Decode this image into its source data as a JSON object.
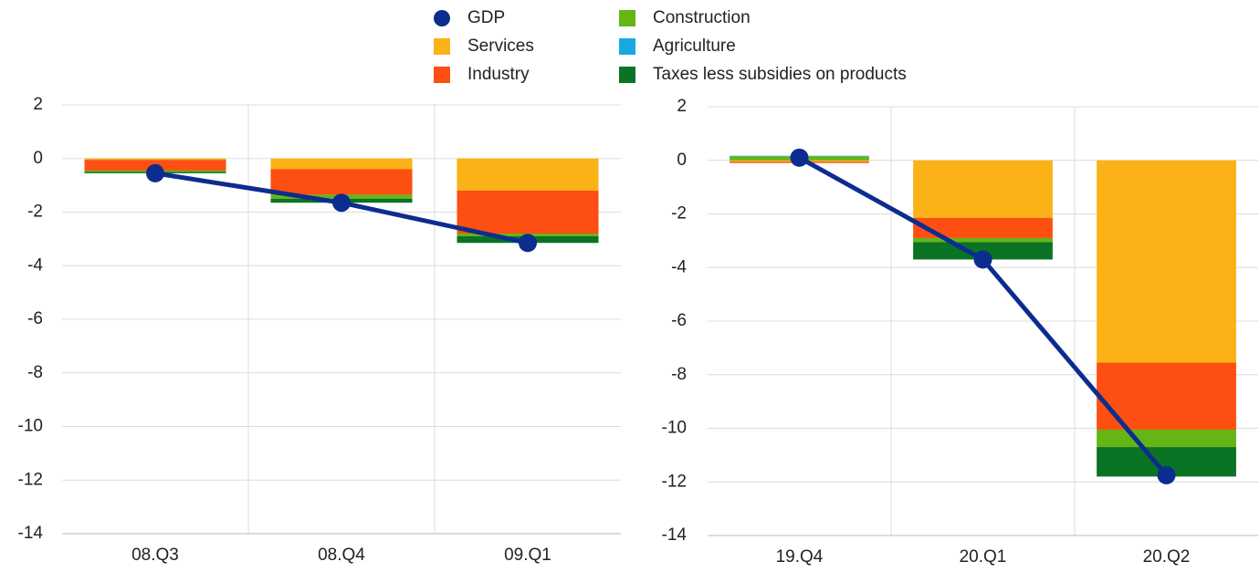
{
  "chart_data": [
    {
      "type": "stacked-bar-line",
      "categories": [
        "08.Q3",
        "08.Q4",
        "09.Q1"
      ],
      "ylim": [
        -14,
        2
      ],
      "yticks": [
        -14,
        -12,
        -10,
        -8,
        -6,
        -4,
        -2,
        0,
        2
      ],
      "grid": true,
      "series": [
        {
          "name": "GDP",
          "color": "#0d2c8f",
          "kind": "line",
          "values": [
            -0.55,
            -1.65,
            -3.15
          ]
        },
        {
          "name": "Services",
          "color": "#fbb217",
          "kind": "bar",
          "values": [
            -0.05,
            -0.4,
            -1.2
          ]
        },
        {
          "name": "Industry",
          "color": "#fd4f12",
          "kind": "bar",
          "values": [
            -0.4,
            -0.95,
            -1.6
          ]
        },
        {
          "name": "Construction",
          "color": "#65b515",
          "kind": "bar",
          "values": [
            -0.05,
            -0.15,
            -0.1
          ]
        },
        {
          "name": "Agriculture",
          "color": "#19a9e1",
          "kind": "bar",
          "values": [
            0,
            0,
            0
          ]
        },
        {
          "name": "Taxes less subsidies on products",
          "color": "#0a7324",
          "kind": "bar",
          "values": [
            -0.05,
            -0.15,
            -0.25
          ]
        }
      ]
    },
    {
      "type": "stacked-bar-line",
      "categories": [
        "19.Q4",
        "20.Q1",
        "20.Q2"
      ],
      "ylim": [
        -14,
        2
      ],
      "yticks": [
        -14,
        -12,
        -10,
        -8,
        -6,
        -4,
        -2,
        0,
        2
      ],
      "grid": true,
      "series": [
        {
          "color": "#0d2c8f",
          "kind": "line",
          "values": [
            0.1,
            -3.7,
            -11.75
          ]
        },
        {
          "color": "#fbb217",
          "kind": "bar",
          "values": [
            -0.05,
            -2.15,
            -7.55
          ]
        },
        {
          "color": "#fd4f12",
          "kind": "bar",
          "values": [
            -0.05,
            -0.75,
            -2.5
          ]
        },
        {
          "color": "#65b515",
          "kind": "bar",
          "values": [
            0.15,
            -0.15,
            -0.65
          ]
        },
        {
          "color": "#19a9e1",
          "kind": "bar",
          "values": [
            0.02,
            0,
            0
          ]
        },
        {
          "color": "#0a7324",
          "kind": "bar",
          "values": [
            0,
            -0.65,
            -1.1
          ]
        }
      ]
    }
  ]
}
